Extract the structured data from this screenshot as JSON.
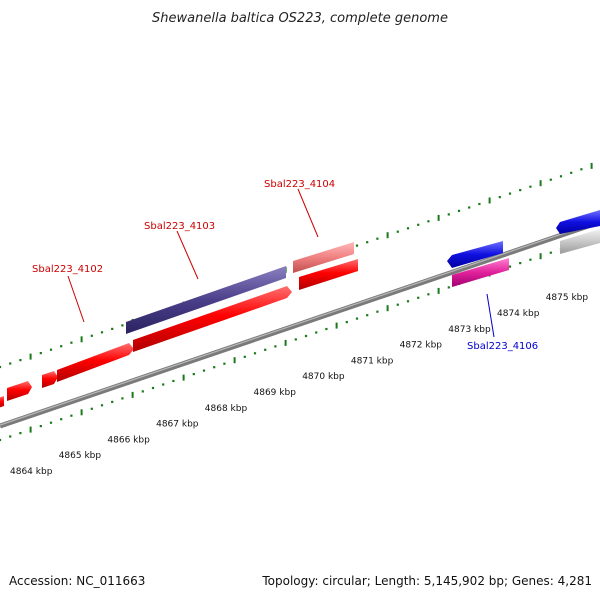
{
  "title": "Shewanella baltica OS223, complete genome",
  "footer": {
    "accession": "Accession: NC_011663",
    "summary": "Topology: circular; Length: 5,145,902 bp; Genes: 4,281"
  },
  "colors": {
    "gene_red": "#ff0000",
    "gene_pink": "#f08080",
    "gene_purple": "#4b3f8a",
    "gene_blue": "#1010e0",
    "gene_magenta": "#e0209a",
    "gene_gray": "#c8c8c8",
    "backbone": "#7a7a7a",
    "tick": "#1a7a1a",
    "label_red": "#cc0000",
    "label_blue": "#0000cc"
  },
  "scale_labels": [
    "4864 kbp",
    "4865 kbp",
    "4866 kbp",
    "4867 kbp",
    "4868 kbp",
    "4869 kbp",
    "4870 kbp",
    "4871 kbp",
    "4872 kbp",
    "4873 kbp",
    "4874 kbp",
    "4875 kbp"
  ],
  "gene_labels": [
    {
      "text": "Sbal223_4102",
      "color": "label_red"
    },
    {
      "text": "Sbal223_4103",
      "color": "label_red"
    },
    {
      "text": "Sbal223_4104",
      "color": "label_red"
    },
    {
      "text": "Sbal223_4106",
      "color": "label_blue"
    }
  ]
}
